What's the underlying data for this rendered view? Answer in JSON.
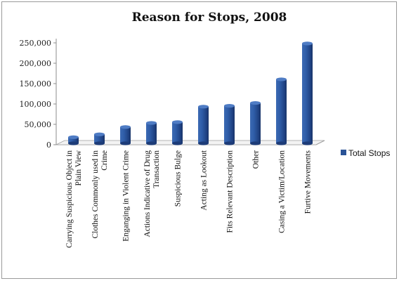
{
  "chart_data": {
    "type": "bar",
    "title": "Reason for Stops, 2008",
    "categories": [
      "Carrying Suspicious Object in Plain View",
      "Clothes Commonly used in Crime",
      "Enganging in Violent Crime",
      "Actions Indicative of Drug Transaction",
      "Suspicious Bulge",
      "Acting as Lookout",
      "Fits Relevant Description",
      "Other",
      "Casing a Victim/Location",
      "Furtive Movements"
    ],
    "category_lines": [
      [
        "Carrying Suspicious Object in",
        "Plain View"
      ],
      [
        "Clothes Commonly used in",
        "Crime"
      ],
      [
        "Enganging in Violent Crime"
      ],
      [
        "Actions Indicative of Drug",
        "Transaction"
      ],
      [
        "Suspicious Bulge"
      ],
      [
        "Acting as Lookout"
      ],
      [
        "Fits Relevant Description"
      ],
      [
        "Other"
      ],
      [
        "Casing a Victim/Location"
      ],
      [
        "Furtive Movements"
      ]
    ],
    "series": [
      {
        "name": "Total Stops",
        "color": "#2a5396",
        "values": [
          15000,
          22000,
          40000,
          50000,
          52000,
          90000,
          92000,
          99000,
          157000,
          245000
        ]
      }
    ],
    "ylim": [
      0,
      250000
    ],
    "yticks": [
      "0",
      "50,000",
      "100,000",
      "150,000",
      "200,000",
      "250,000"
    ],
    "ytick_values": [
      0,
      50000,
      100000,
      150000,
      200000,
      250000
    ],
    "grid": false,
    "legend_position": "right",
    "style": "3d-cylinder"
  }
}
